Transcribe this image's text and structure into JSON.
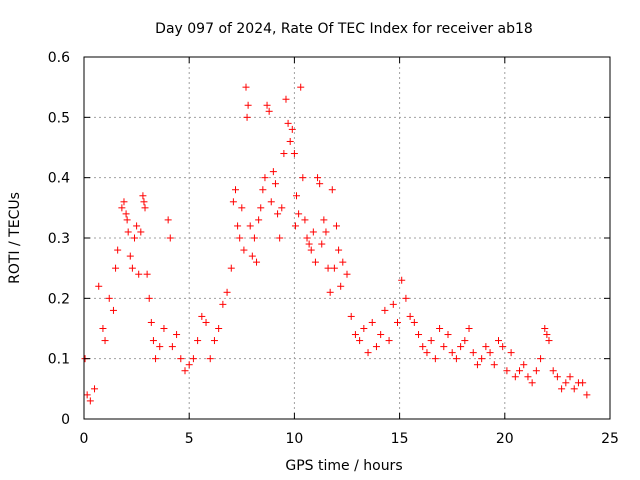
{
  "chart_data": {
    "type": "scatter",
    "title": "Day 097 of 2024, Rate Of TEC Index for receiver ab18",
    "xlabel": "GPS time / hours",
    "ylabel": "ROTI / TECUs",
    "xlim": [
      0,
      25
    ],
    "ylim": [
      0,
      0.6
    ],
    "xticks": [
      0,
      5,
      10,
      15,
      20,
      25
    ],
    "xtick_labels": [
      "0",
      "5",
      "10",
      "15",
      "20",
      "25"
    ],
    "yticks": [
      0,
      0.1,
      0.2,
      0.3,
      0.4,
      0.5,
      0.6
    ],
    "ytick_labels": [
      "0",
      "0.1",
      "0.2",
      "0.3",
      "0.4",
      "0.5",
      "0.6"
    ],
    "grid": true,
    "marker": "+",
    "color": "#ff0000",
    "series": [
      {
        "x": [
          0.05,
          0.15,
          0.3,
          0.5,
          0.7,
          0.9,
          1.0,
          1.2,
          1.4,
          1.5,
          1.6,
          1.8,
          1.9,
          2.0,
          2.05,
          2.1,
          2.2,
          2.3,
          2.4,
          2.5,
          2.6,
          2.7,
          2.8,
          2.85,
          2.9,
          3.0,
          3.1,
          3.2,
          3.3,
          3.4,
          3.6,
          3.8,
          4.0,
          4.1,
          4.2,
          4.4,
          4.6,
          4.8,
          5.0,
          5.2,
          5.4,
          5.6,
          5.8,
          6.0,
          6.2,
          6.4,
          6.6,
          6.8,
          7.0,
          7.1,
          7.2,
          7.3,
          7.4,
          7.5,
          7.6,
          7.7,
          7.75,
          7.8,
          7.9,
          8.0,
          8.1,
          8.2,
          8.3,
          8.4,
          8.5,
          8.6,
          8.7,
          8.8,
          8.9,
          9.0,
          9.1,
          9.2,
          9.3,
          9.4,
          9.5,
          9.6,
          9.7,
          9.8,
          9.9,
          10.0,
          10.05,
          10.1,
          10.2,
          10.3,
          10.4,
          10.5,
          10.6,
          10.7,
          10.8,
          10.9,
          11.0,
          11.1,
          11.2,
          11.3,
          11.4,
          11.5,
          11.6,
          11.7,
          11.8,
          11.9,
          12.0,
          12.1,
          12.2,
          12.3,
          12.5,
          12.7,
          12.9,
          13.1,
          13.3,
          13.5,
          13.7,
          13.9,
          14.1,
          14.3,
          14.5,
          14.7,
          14.9,
          15.1,
          15.3,
          15.5,
          15.7,
          15.9,
          16.1,
          16.3,
          16.5,
          16.7,
          16.9,
          17.1,
          17.3,
          17.5,
          17.7,
          17.9,
          18.1,
          18.3,
          18.5,
          18.7,
          18.9,
          19.1,
          19.3,
          19.5,
          19.7,
          19.9,
          20.1,
          20.3,
          20.5,
          20.7,
          20.9,
          21.1,
          21.3,
          21.5,
          21.7,
          21.9,
          22.0,
          22.1,
          22.3,
          22.5,
          22.7,
          22.9,
          23.1,
          23.3,
          23.5,
          23.7,
          23.9
        ],
        "y": [
          0.1,
          0.04,
          0.03,
          0.05,
          0.22,
          0.15,
          0.13,
          0.2,
          0.18,
          0.25,
          0.28,
          0.35,
          0.36,
          0.34,
          0.33,
          0.31,
          0.27,
          0.25,
          0.3,
          0.32,
          0.24,
          0.31,
          0.37,
          0.36,
          0.35,
          0.24,
          0.2,
          0.16,
          0.13,
          0.1,
          0.12,
          0.15,
          0.33,
          0.3,
          0.12,
          0.14,
          0.1,
          0.08,
          0.09,
          0.1,
          0.13,
          0.17,
          0.16,
          0.1,
          0.13,
          0.15,
          0.19,
          0.21,
          0.25,
          0.36,
          0.38,
          0.32,
          0.3,
          0.35,
          0.28,
          0.55,
          0.5,
          0.52,
          0.32,
          0.27,
          0.3,
          0.26,
          0.33,
          0.35,
          0.38,
          0.4,
          0.52,
          0.51,
          0.36,
          0.41,
          0.39,
          0.34,
          0.3,
          0.35,
          0.44,
          0.53,
          0.49,
          0.46,
          0.48,
          0.44,
          0.32,
          0.37,
          0.34,
          0.55,
          0.4,
          0.33,
          0.3,
          0.29,
          0.28,
          0.31,
          0.26,
          0.4,
          0.39,
          0.29,
          0.33,
          0.31,
          0.25,
          0.21,
          0.38,
          0.25,
          0.32,
          0.28,
          0.22,
          0.26,
          0.24,
          0.17,
          0.14,
          0.13,
          0.15,
          0.11,
          0.16,
          0.12,
          0.14,
          0.18,
          0.13,
          0.19,
          0.16,
          0.23,
          0.2,
          0.17,
          0.16,
          0.14,
          0.12,
          0.11,
          0.13,
          0.1,
          0.15,
          0.12,
          0.14,
          0.11,
          0.1,
          0.12,
          0.13,
          0.15,
          0.11,
          0.09,
          0.1,
          0.12,
          0.11,
          0.09,
          0.13,
          0.12,
          0.08,
          0.11,
          0.07,
          0.08,
          0.09,
          0.07,
          0.06,
          0.08,
          0.1,
          0.15,
          0.14,
          0.13,
          0.08,
          0.07,
          0.05,
          0.06,
          0.07,
          0.05,
          0.06,
          0.06,
          0.04
        ]
      }
    ]
  }
}
